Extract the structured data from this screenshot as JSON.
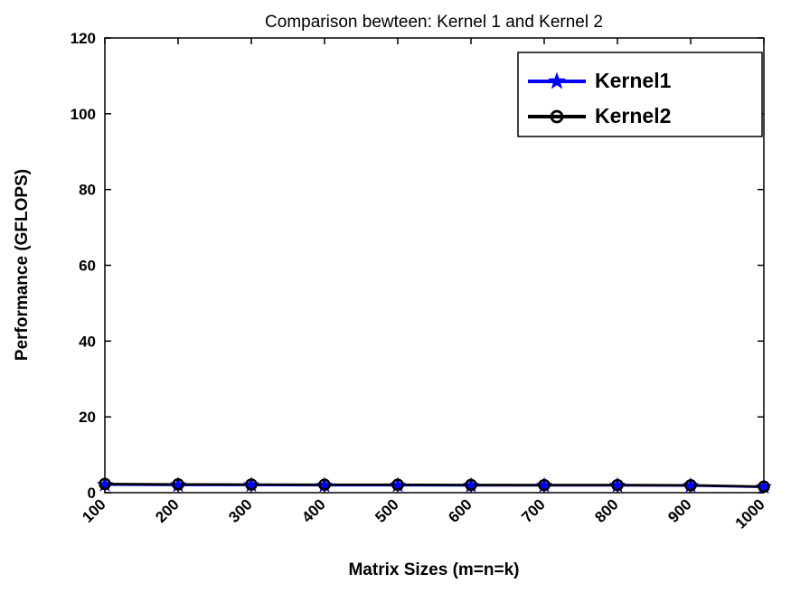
{
  "chart_data": {
    "type": "line",
    "title": "Comparison bewteen: Kernel 1 and Kernel 2",
    "xlabel": "Matrix Sizes (m=n=k)",
    "ylabel": "Performance (GFLOPS)",
    "x": [
      100,
      200,
      300,
      400,
      500,
      600,
      700,
      800,
      900,
      1000
    ],
    "xlim": [
      100,
      1000
    ],
    "ylim": [
      0,
      120
    ],
    "yticks": [
      0,
      20,
      40,
      60,
      80,
      100,
      120
    ],
    "grid": false,
    "legend_position": "top-right",
    "axis_color": "#000000",
    "background_color": "#ffffff",
    "series": [
      {
        "name": "Kernel1",
        "color": "#0000ff",
        "marker": "star",
        "values": [
          2.1,
          2.0,
          2.0,
          1.95,
          1.95,
          1.9,
          1.9,
          1.9,
          1.85,
          1.5
        ]
      },
      {
        "name": "Kernel2",
        "color": "#000000",
        "marker": "circle",
        "values": [
          2.3,
          2.2,
          2.15,
          2.1,
          2.1,
          2.05,
          2.0,
          2.0,
          1.95,
          1.6
        ]
      }
    ]
  }
}
